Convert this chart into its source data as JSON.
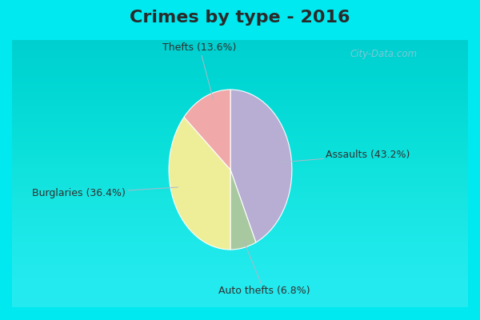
{
  "title": "Crimes by type - 2016",
  "slices": [
    {
      "label": "Assaults (43.2%)",
      "value": 43.2,
      "color": "#b8aed4"
    },
    {
      "label": "Auto thefts (6.8%)",
      "value": 6.8,
      "color": "#a8c8a0"
    },
    {
      "label": "Burglaries (36.4%)",
      "value": 36.4,
      "color": "#eeee99"
    },
    {
      "label": "Thefts (13.6%)",
      "value": 13.6,
      "color": "#f0a8a8"
    }
  ],
  "title_fontsize": 16,
  "title_fontweight": "bold",
  "title_color": "#2a2a2a",
  "background_color": "#00e8f0",
  "main_bg_top": "#d0ece0",
  "main_bg_bottom": "#c0e8e0",
  "label_color": "#303030",
  "label_fontsize": 9,
  "watermark": "City-Data.com",
  "watermark_color": "#90c8d8"
}
